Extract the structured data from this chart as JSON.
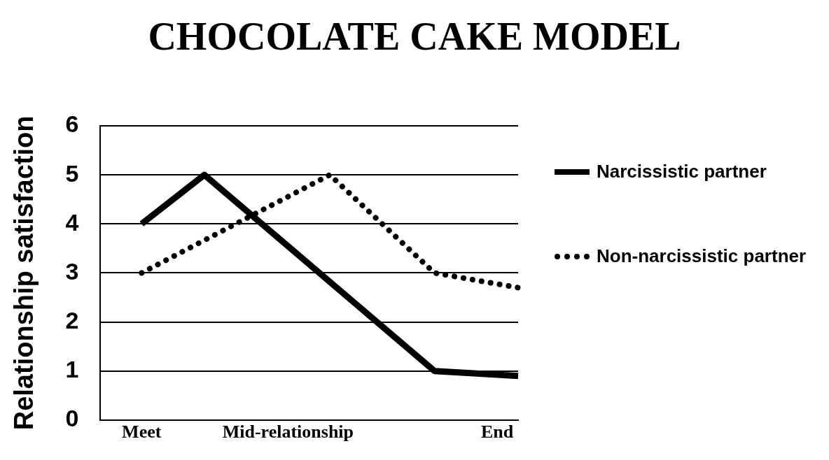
{
  "chart_data": {
    "type": "line",
    "title": "CHOCOLATE CAKE MODEL",
    "ylabel": "Relationship satisfaction",
    "categories": [
      null,
      null,
      "Meet",
      null,
      null,
      null,
      null,
      null,
      null,
      "Mid-relationship",
      null,
      null,
      null,
      null,
      null,
      null,
      null,
      null,
      null,
      "End",
      null
    ],
    "ylim": [
      0,
      6
    ],
    "yticks": [
      0,
      1,
      2,
      3,
      4,
      5,
      6
    ],
    "grid": "y",
    "legend": "right",
    "marker": "none",
    "series": [
      {
        "name": "Narcissistic partner",
        "color": "#000000",
        "line_style": "solid",
        "values": [
          null,
          null,
          4,
          null,
          null,
          5,
          null,
          null,
          null,
          null,
          null,
          null,
          null,
          null,
          null,
          null,
          1,
          null,
          null,
          null,
          0.9
        ]
      },
      {
        "name": "Non-narcissistic partner",
        "color": "#000000",
        "line_style": "dotted",
        "values": [
          null,
          null,
          3,
          null,
          null,
          null,
          null,
          null,
          null,
          null,
          null,
          5,
          null,
          null,
          null,
          null,
          3,
          null,
          null,
          null,
          2.7
        ]
      }
    ]
  }
}
